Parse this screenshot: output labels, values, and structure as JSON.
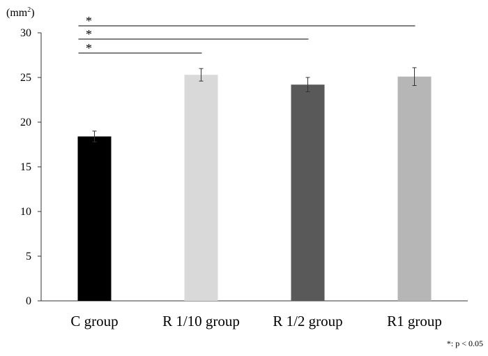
{
  "chart_data": {
    "type": "bar",
    "unit_label": "(mm",
    "unit_superscript": "2",
    "unit_close": ")",
    "categories": [
      "C group",
      "R 1/10 group",
      "R 1/2 group",
      "R1 group"
    ],
    "values": [
      18.4,
      25.3,
      24.2,
      25.1
    ],
    "errors": [
      0.6,
      0.7,
      0.8,
      1.0
    ],
    "colors": [
      "#000000",
      "#d9d9d9",
      "#595959",
      "#b6b6b6"
    ],
    "ylim": [
      0,
      30
    ],
    "yticks": [
      0,
      5,
      10,
      15,
      20,
      25,
      30
    ],
    "significance": [
      {
        "from": 0,
        "to": 3,
        "label": "*"
      },
      {
        "from": 0,
        "to": 2,
        "label": "*"
      },
      {
        "from": 0,
        "to": 1,
        "label": "*"
      }
    ],
    "footnote": "*: p < 0.05"
  }
}
